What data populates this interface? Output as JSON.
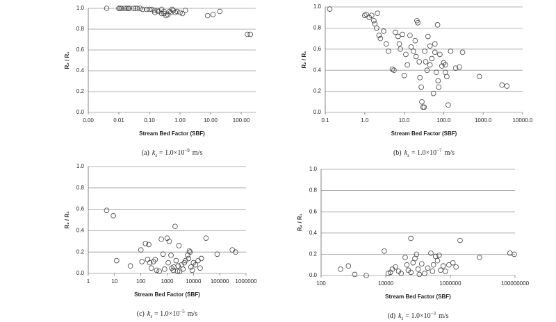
{
  "chart_data": [
    {
      "type": "scatter",
      "xscale": "log",
      "grid": true,
      "color": "#404040",
      "x_label": "Stream Bed Factor (SBF)",
      "y_label": "R₂ / R₁",
      "caption": {
        "label": "(a)",
        "var": "k",
        "sub": "s",
        "coef": "= 1.0×10",
        "exp": "−9",
        "unit": "m/s"
      },
      "xlim": [
        0.001,
        300
      ],
      "ylim": [
        0,
        1
      ],
      "xticks": [
        {
          "value": 0.001,
          "label": "0.00"
        },
        0.01,
        {
          "value": 0.1,
          "label": "0.10"
        },
        {
          "value": 1,
          "label": "1.00"
        },
        {
          "value": 10,
          "label": "10.00"
        },
        {
          "value": 100,
          "label": "100.00"
        }
      ],
      "yticks": [
        {
          "value": 0,
          "label": "0.0"
        },
        0.2,
        0.4,
        0.6,
        0.8,
        {
          "value": 1,
          "label": "1.0"
        }
      ],
      "x": [
        0.004,
        0.01,
        0.011,
        0.012,
        0.015,
        0.018,
        0.02,
        0.022,
        0.03,
        0.035,
        0.04,
        0.05,
        0.06,
        0.08,
        0.1,
        0.12,
        0.15,
        0.18,
        0.2,
        0.25,
        0.3,
        0.35,
        0.4,
        0.45,
        0.5,
        0.6,
        0.7,
        0.8,
        1.0,
        1.2,
        1.5,
        8,
        12,
        20,
        0.25,
        0.55,
        160,
        200,
        0.15,
        0.3
      ],
      "values": [
        1.0,
        1.0,
        1.0,
        1.0,
        1.0,
        1.0,
        1.0,
        1.0,
        1.0,
        1.0,
        1.0,
        1.0,
        0.99,
        0.99,
        0.99,
        0.99,
        0.98,
        0.98,
        0.97,
        0.95,
        0.97,
        0.93,
        0.94,
        0.97,
        0.96,
        0.98,
        0.96,
        0.97,
        0.96,
        0.95,
        0.98,
        0.93,
        0.94,
        0.97,
        0.99,
        0.99,
        0.75,
        0.75,
        0.96,
        0.95
      ]
    },
    {
      "type": "scatter",
      "xscale": "log",
      "grid": true,
      "color": "#404040",
      "x_label": "Stream Bed Factor (SBF)",
      "y_label": "R₂ / R₁",
      "caption": {
        "label": "(b)",
        "var": "k",
        "sub": "s",
        "coef": "= 1.0×10",
        "exp": "−7",
        "unit": "m/s"
      },
      "xlim": [
        0.1,
        10000
      ],
      "ylim": [
        0,
        1
      ],
      "xticks": [
        0.1,
        {
          "value": 1,
          "label": "1.0"
        },
        {
          "value": 10,
          "label": "10.0"
        },
        {
          "value": 100,
          "label": "100.0"
        },
        {
          "value": 1000,
          "label": "1000.0"
        },
        {
          "value": 10000,
          "label": "10000.0"
        }
      ],
      "yticks": [
        {
          "value": 0,
          "label": "0.0"
        },
        0.2,
        0.4,
        0.6,
        0.8,
        {
          "value": 1,
          "label": "1.0"
        }
      ],
      "x": [
        0.13,
        1.0,
        1.1,
        1.3,
        1.5,
        1.7,
        1.8,
        2.0,
        2.1,
        2.3,
        2.5,
        3,
        3.5,
        4,
        5,
        5.5,
        6,
        7,
        7.5,
        8,
        9,
        10,
        11,
        12,
        14,
        15,
        17,
        19,
        20,
        21,
        22,
        24,
        25,
        27,
        28,
        30,
        32,
        35,
        38,
        40,
        45,
        50,
        55,
        60,
        65,
        70,
        72,
        75,
        80,
        90,
        100,
        110,
        120,
        130,
        150,
        200,
        250,
        300,
        800,
        3000,
        4000,
        60,
        45,
        110,
        33
      ],
      "values": [
        0.98,
        0.92,
        0.93,
        0.9,
        0.92,
        0.87,
        0.84,
        0.8,
        0.94,
        0.73,
        0.7,
        0.77,
        0.65,
        0.58,
        0.41,
        0.4,
        0.76,
        0.72,
        0.65,
        0.6,
        0.74,
        0.35,
        0.55,
        0.45,
        0.73,
        0.62,
        0.58,
        0.68,
        0.53,
        0.87,
        0.85,
        0.48,
        0.33,
        0.24,
        0.1,
        0.05,
        0.05,
        0.48,
        0.4,
        0.72,
        0.63,
        0.51,
        0.18,
        0.57,
        0.38,
        0.83,
        0.3,
        0.24,
        0.55,
        0.44,
        0.47,
        0.45,
        0.34,
        0.07,
        0.58,
        0.42,
        0.43,
        0.57,
        0.34,
        0.26,
        0.25,
        0.65,
        0.45,
        0.38,
        0.58
      ]
    },
    {
      "type": "scatter",
      "xscale": "log",
      "grid": true,
      "color": "#404040",
      "x_label": "Stream Bed Factor (SBF)",
      "y_label": "R₂ / R₁",
      "caption": {
        "label": "(c)",
        "var": "k",
        "sub": "s",
        "coef": "= 1.0×10",
        "exp": "−5",
        "unit": "m/s"
      },
      "xlim": [
        1,
        1000000
      ],
      "ylim": [
        0,
        1
      ],
      "xticks": [
        1,
        10,
        100,
        1000,
        10000,
        100000,
        1000000
      ],
      "yticks": [
        {
          "value": 0,
          "label": "0.0"
        },
        0.2,
        0.4,
        0.6,
        0.8,
        {
          "value": 1,
          "label": "1.0"
        }
      ],
      "x": [
        5,
        9,
        12,
        40,
        100,
        110,
        150,
        180,
        200,
        220,
        250,
        300,
        400,
        500,
        600,
        800,
        1000,
        1100,
        1200,
        1400,
        1500,
        1700,
        2000,
        2200,
        2500,
        2800,
        3000,
        3500,
        4000,
        5000,
        6000,
        6500,
        7000,
        7500,
        8000,
        9000,
        10000,
        12000,
        15000,
        18000,
        20000,
        30000,
        80000,
        300000,
        400000,
        1800,
        2600,
        4500,
        350,
        700
      ],
      "values": [
        0.59,
        0.54,
        0.12,
        0.07,
        0.22,
        0.11,
        0.28,
        0.13,
        0.27,
        0.1,
        0.05,
        0.11,
        0.03,
        0.02,
        0.32,
        0.04,
        0.33,
        0.1,
        0.3,
        0.17,
        0.05,
        0.03,
        0.44,
        0.12,
        0.02,
        0.26,
        0.02,
        0.08,
        0.04,
        0.12,
        0.17,
        0.14,
        0.21,
        0.2,
        0.06,
        0.03,
        0.1,
        0.08,
        0.12,
        0.05,
        0.14,
        0.33,
        0.18,
        0.22,
        0.2,
        0.06,
        0.07,
        0.1,
        0.13,
        0.18
      ]
    },
    {
      "type": "scatter",
      "xscale": "log",
      "grid": true,
      "color": "#404040",
      "x_label": "Stream Bed Factor (SBF)",
      "y_label": "R₂ / R₁",
      "caption": {
        "label": "(d)",
        "var": "k",
        "sub": "s",
        "coef": "= 1.0×10",
        "exp": "−3",
        "unit": "m/s"
      },
      "xlim": [
        100,
        100000000
      ],
      "ylim": [
        0,
        1
      ],
      "xticks": [
        100,
        10000,
        1000000,
        100000000
      ],
      "yticks": [
        {
          "value": 0,
          "label": "0.0"
        },
        0.2,
        0.4,
        0.6,
        0.8,
        {
          "value": 1,
          "label": "1.0"
        }
      ],
      "x": [
        400,
        700,
        1100,
        2500,
        12000,
        14000,
        16000,
        9000,
        20000,
        25000,
        30000,
        40000,
        45000,
        50000,
        60000,
        70000,
        80000,
        90000,
        100000,
        130000,
        60000,
        160000,
        200000,
        250000,
        300000,
        350000,
        400000,
        450000,
        500000,
        600000,
        700000,
        900000,
        1200000,
        1500000,
        2000000,
        8000000,
        70000000,
        95000000,
        110000,
        280000
      ],
      "values": [
        0.06,
        0.09,
        0.01,
        0.0,
        0.02,
        0.03,
        0.06,
        0.23,
        0.08,
        0.04,
        0.02,
        0.17,
        0.1,
        0.05,
        0.03,
        0.12,
        0.16,
        0.2,
        0.06,
        0.11,
        0.35,
        0.02,
        0.07,
        0.21,
        0.1,
        0.18,
        0.14,
        0.19,
        0.05,
        0.09,
        0.04,
        0.1,
        0.12,
        0.08,
        0.33,
        0.17,
        0.21,
        0.2,
        0.01,
        0.04
      ]
    }
  ]
}
